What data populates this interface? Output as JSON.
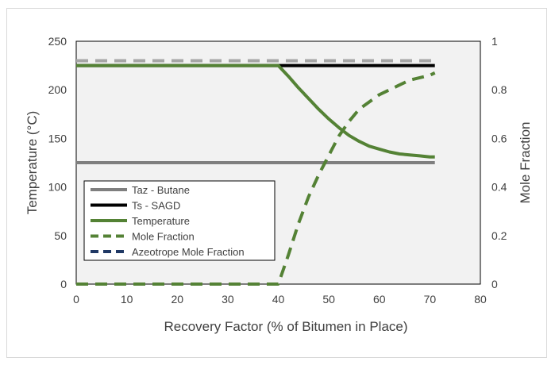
{
  "chart_data": {
    "type": "line",
    "title": "",
    "xlabel": "Recovery Factor (% of Bitumen in Place)",
    "ylabel": "Temperature (°C)",
    "y2label": "Mole Fraction",
    "xlim": [
      0,
      80
    ],
    "ylim": [
      0,
      250
    ],
    "y2lim": [
      0,
      1
    ],
    "xticks": [
      "0",
      "10",
      "20",
      "30",
      "40",
      "50",
      "60",
      "70",
      "80"
    ],
    "yticks": [
      "0",
      "50",
      "100",
      "150",
      "200",
      "250"
    ],
    "y2ticks": [
      "0",
      "0.2",
      "0.4",
      "0.6",
      "0.8",
      "1"
    ],
    "grid": false,
    "legend": "lower-left",
    "series": [
      {
        "name": "Taz - Butane",
        "axis": "left",
        "color": "#7f7f7f",
        "dash": false,
        "x": [
          0,
          71
        ],
        "y": [
          125,
          125
        ]
      },
      {
        "name": "Ts - SAGD",
        "axis": "left",
        "color": "#000000",
        "dash": false,
        "x": [
          0,
          71
        ],
        "y": [
          225,
          225
        ]
      },
      {
        "name": "Temperature",
        "axis": "left",
        "color": "#548235",
        "dash": false,
        "x": [
          0,
          40,
          42,
          44,
          46,
          48,
          50,
          52,
          54,
          56,
          58,
          60,
          62,
          64,
          66,
          68,
          70,
          71
        ],
        "y": [
          225,
          225,
          214,
          202,
          191,
          180,
          170,
          161,
          153,
          147,
          142,
          139,
          136,
          134,
          133,
          132,
          131,
          131
        ]
      },
      {
        "name": "Mole Fraction",
        "axis": "right",
        "color": "#548235",
        "dash": true,
        "x": [
          0,
          40,
          42,
          44,
          46,
          48,
          50,
          52,
          54,
          56,
          58,
          60,
          62,
          64,
          66,
          68,
          70,
          71
        ],
        "y": [
          0,
          0,
          0.12,
          0.25,
          0.36,
          0.45,
          0.53,
          0.61,
          0.67,
          0.72,
          0.75,
          0.78,
          0.8,
          0.82,
          0.84,
          0.85,
          0.86,
          0.87
        ]
      },
      {
        "name": "Azeotrope Mole Fraction",
        "axis": "right",
        "color": "#1f3864",
        "dash": true,
        "x": [],
        "y": []
      },
      {
        "name": "",
        "axis": "right",
        "color": "#a6a6a6",
        "dash": true,
        "x": [
          0,
          71
        ],
        "y": [
          0.92,
          0.92
        ]
      }
    ]
  }
}
